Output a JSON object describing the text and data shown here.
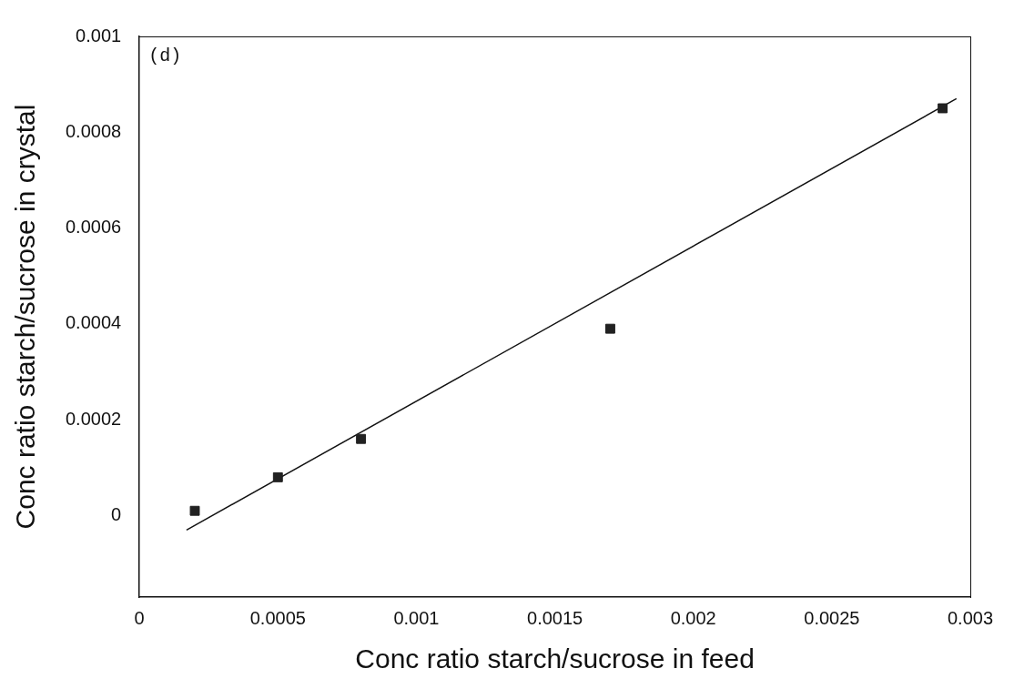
{
  "chart_data": {
    "type": "scatter",
    "xlabel": "Conc ratio starch/sucrose in feed",
    "ylabel": "Conc ratio starch/sucrose in crystal",
    "xlim": [
      0,
      0.003
    ],
    "xticks": [
      0,
      0.0005,
      0.001,
      0.0015,
      0.002,
      0.0025,
      0.003
    ],
    "ylim": [
      -0.00017,
      0.001
    ],
    "yticks": [
      0,
      0.0002,
      0.0004,
      0.0006,
      0.0008,
      0.001
    ],
    "grid": false,
    "legend": false,
    "series": [
      {
        "type": "scatter",
        "marker": "square",
        "color": "#222222",
        "x": [
          0.0002,
          0.0005,
          0.0008,
          0.0017,
          0.0029
        ],
        "values": [
          1e-05,
          8e-05,
          0.00016,
          0.00039,
          0.00085
        ]
      },
      {
        "type": "line",
        "marker": "none",
        "color": "#111111",
        "x": [
          0.00017,
          0.00295
        ],
        "values": [
          -3e-05,
          0.00087
        ]
      }
    ],
    "annotations": [
      "(d)"
    ]
  }
}
